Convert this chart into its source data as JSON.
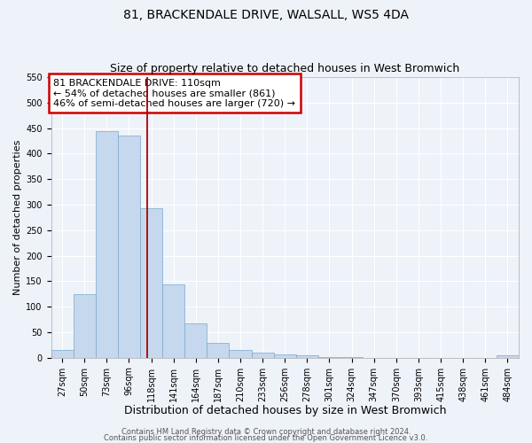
{
  "title": "81, BRACKENDALE DRIVE, WALSALL, WS5 4DA",
  "subtitle": "Size of property relative to detached houses in West Bromwich",
  "xlabel": "Distribution of detached houses by size in West Bromwich",
  "ylabel": "Number of detached properties",
  "bar_labels": [
    "27sqm",
    "50sqm",
    "73sqm",
    "96sqm",
    "118sqm",
    "141sqm",
    "164sqm",
    "187sqm",
    "210sqm",
    "233sqm",
    "256sqm",
    "278sqm",
    "301sqm",
    "324sqm",
    "347sqm",
    "370sqm",
    "393sqm",
    "415sqm",
    "438sqm",
    "461sqm",
    "484sqm"
  ],
  "bar_values": [
    15,
    125,
    445,
    435,
    293,
    143,
    67,
    29,
    15,
    10,
    7,
    4,
    2,
    1,
    0,
    0,
    0,
    0,
    0,
    0,
    5
  ],
  "bar_color": "#c5d8ed",
  "bar_edgecolor": "#7ba8cc",
  "reference_line_color": "#aa0000",
  "annotation_line1": "81 BRACKENDALE DRIVE: 110sqm",
  "annotation_line2": "← 54% of detached houses are smaller (861)",
  "annotation_line3": "46% of semi-detached houses are larger (720) →",
  "annotation_box_edgecolor": "#cc0000",
  "ylim": [
    0,
    550
  ],
  "yticks": [
    0,
    50,
    100,
    150,
    200,
    250,
    300,
    350,
    400,
    450,
    500,
    550
  ],
  "footer1": "Contains HM Land Registry data © Crown copyright and database right 2024.",
  "footer2": "Contains public sector information licensed under the Open Government Licence v3.0.",
  "bg_color": "#eef2f9",
  "grid_color": "#ffffff",
  "title_fontsize": 10,
  "subtitle_fontsize": 9,
  "xlabel_fontsize": 9,
  "ylabel_fontsize": 8,
  "tick_fontsize": 7,
  "annotation_fontsize": 8,
  "footer_fontsize": 6
}
